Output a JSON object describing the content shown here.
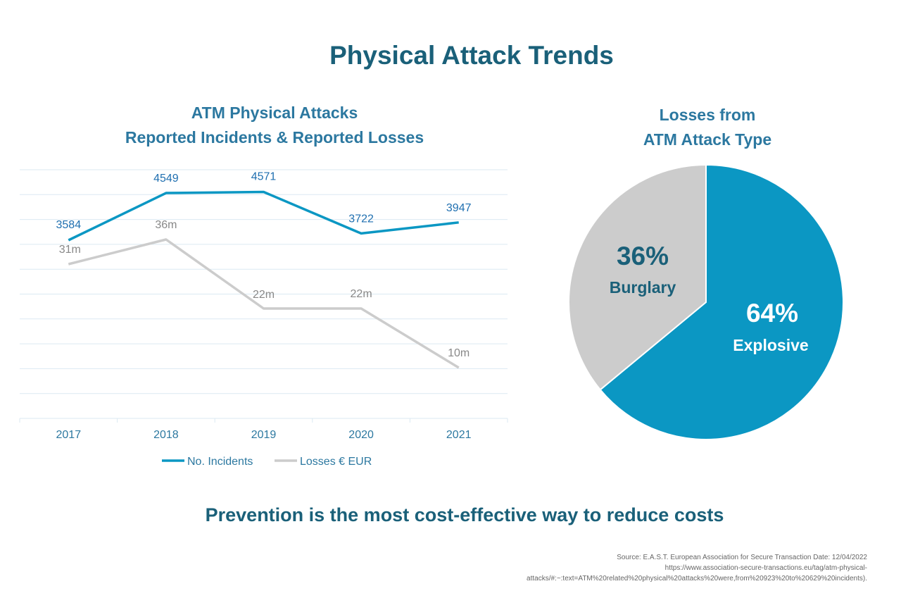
{
  "main_title": "Physical Attack Trends",
  "tagline": "Prevention is the most cost-effective way to reduce costs",
  "source": {
    "line1": "Source: E.A.S.T. European Association for Secure Transaction Date: 12/04/2022",
    "line2": "https://www.association-secure-transactions.eu/tag/atm-physical-",
    "line3": "attacks/#:~:text=ATM%20related%20physical%20attacks%20were,from%20923%20to%20629%20incidents)."
  },
  "colors": {
    "blue": "#0b97c3",
    "gray": "#cccccc",
    "title": "#1a6079",
    "subtitle": "#2c78a0",
    "grid": "#dbe9f2"
  },
  "chart_data": [
    {
      "type": "line",
      "title_line1": "ATM Physical Attacks",
      "title_line2": "Reported Incidents & Reported Losses",
      "categories": [
        "2017",
        "2018",
        "2019",
        "2020",
        "2021"
      ],
      "series": [
        {
          "name": "No. Incidents",
          "values": [
            3584,
            4549,
            4571,
            3722,
            3947
          ],
          "labels": [
            "3584",
            "4549",
            "4571",
            "3722",
            "3947"
          ],
          "color": "#0b97c3"
        },
        {
          "name": "Losses € EUR",
          "values": [
            31,
            36,
            22,
            22,
            10
          ],
          "labels": [
            "31m",
            "36m",
            "22m",
            "22m",
            "10m"
          ],
          "color": "#cccccc"
        }
      ],
      "grid": true,
      "legend": "bottom"
    },
    {
      "type": "pie",
      "title_line1": "Losses from",
      "title_line2": "ATM Attack Type",
      "slices": [
        {
          "name": "Explosive",
          "value": 64,
          "label": "64%",
          "color": "#0b97c3"
        },
        {
          "name": "Burglary",
          "value": 36,
          "label": "36%",
          "color": "#cccccc"
        }
      ]
    }
  ]
}
